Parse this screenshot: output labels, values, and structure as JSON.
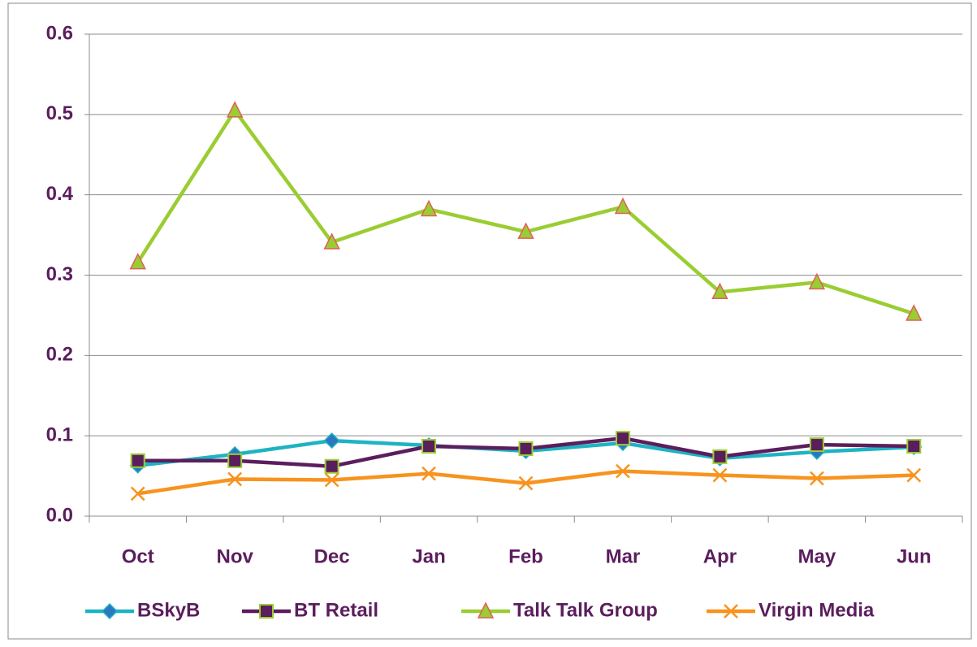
{
  "chart_data": {
    "type": "line",
    "categories": [
      "Oct",
      "Nov",
      "Dec",
      "Jan",
      "Feb",
      "Mar",
      "Apr",
      "May",
      "Jun"
    ],
    "series": [
      {
        "name": "BSkyB",
        "color": "#1fb3c2",
        "marker": "diamond",
        "marker_color": "#2a78c0",
        "values": [
          0.063,
          0.077,
          0.094,
          0.088,
          0.081,
          0.091,
          0.072,
          0.08,
          0.086
        ]
      },
      {
        "name": "BT Retail",
        "color": "#5b1e5d",
        "marker": "square",
        "marker_color": "#5b1e5d",
        "values": [
          0.069,
          0.069,
          0.062,
          0.087,
          0.084,
          0.097,
          0.074,
          0.089,
          0.087
        ]
      },
      {
        "name": "Talk Talk Group",
        "color": "#9acd32",
        "marker": "triangle",
        "marker_color": "#9acd32",
        "values": [
          0.316,
          0.505,
          0.341,
          0.382,
          0.354,
          0.385,
          0.279,
          0.291,
          0.252
        ]
      },
      {
        "name": "Virgin Media",
        "color": "#f7931e",
        "marker": "x",
        "marker_color": "#f7931e",
        "values": [
          0.028,
          0.046,
          0.045,
          0.053,
          0.041,
          0.056,
          0.051,
          0.047,
          0.051
        ]
      }
    ],
    "ylim": [
      0,
      0.6
    ],
    "yticks": [
      {
        "value": 0,
        "label": "0.0"
      },
      0.1,
      0.2,
      0.3,
      0.4,
      0.5,
      0.6
    ],
    "grid": true,
    "legend": "bottom"
  }
}
